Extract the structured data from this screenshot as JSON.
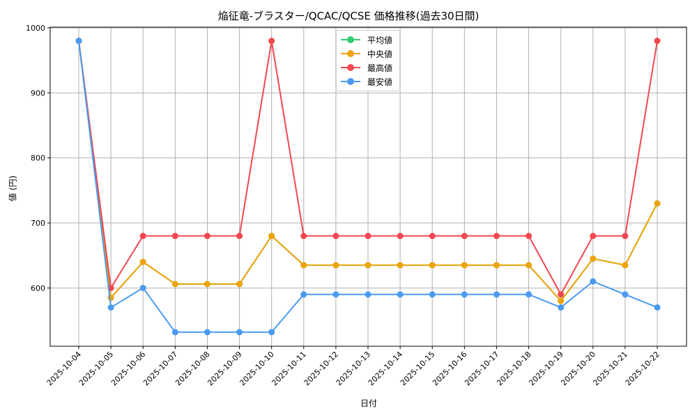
{
  "chart_data": {
    "type": "line",
    "title": "焔征竜-ブラスター/QCAC/QCSE 価格推移(過去30日間)",
    "xlabel": "日付",
    "ylabel": "値 (円)",
    "x": [
      "2025-10-04",
      "2025-10-05",
      "2025-10-06",
      "2025-10-07",
      "2025-10-08",
      "2025-10-09",
      "2025-10-10",
      "2025-10-11",
      "2025-10-12",
      "2025-10-13",
      "2025-10-14",
      "2025-10-15",
      "2025-10-16",
      "2025-10-17",
      "2025-10-18",
      "2025-10-19",
      "2025-10-20",
      "2025-10-21",
      "2025-10-22"
    ],
    "series": [
      {
        "name": "平均値",
        "color": "#2ecc71",
        "values": [
          980,
          585,
          640,
          606,
          606,
          606,
          680,
          635,
          635,
          635,
          635,
          635,
          635,
          635,
          635,
          580,
          645,
          635,
          730
        ]
      },
      {
        "name": "中央値",
        "color": "#f0a30a",
        "values": [
          980,
          585,
          640,
          606,
          606,
          606,
          680,
          635,
          635,
          635,
          635,
          635,
          635,
          635,
          635,
          580,
          645,
          635,
          730
        ]
      },
      {
        "name": "最高値",
        "color": "#f0484e",
        "values": [
          980,
          600,
          680,
          680,
          680,
          680,
          980,
          680,
          680,
          680,
          680,
          680,
          680,
          680,
          680,
          590,
          680,
          680,
          980
        ]
      },
      {
        "name": "最安値",
        "color": "#4a9af0",
        "values": [
          980,
          570,
          600,
          532,
          532,
          532,
          532,
          590,
          590,
          590,
          590,
          590,
          590,
          590,
          590,
          570,
          610,
          590,
          570
        ]
      }
    ],
    "yticks": [
      600,
      700,
      800,
      900,
      1000
    ],
    "ylim": [
      510,
      1000
    ],
    "grid": true,
    "legend_position": "upper center"
  }
}
